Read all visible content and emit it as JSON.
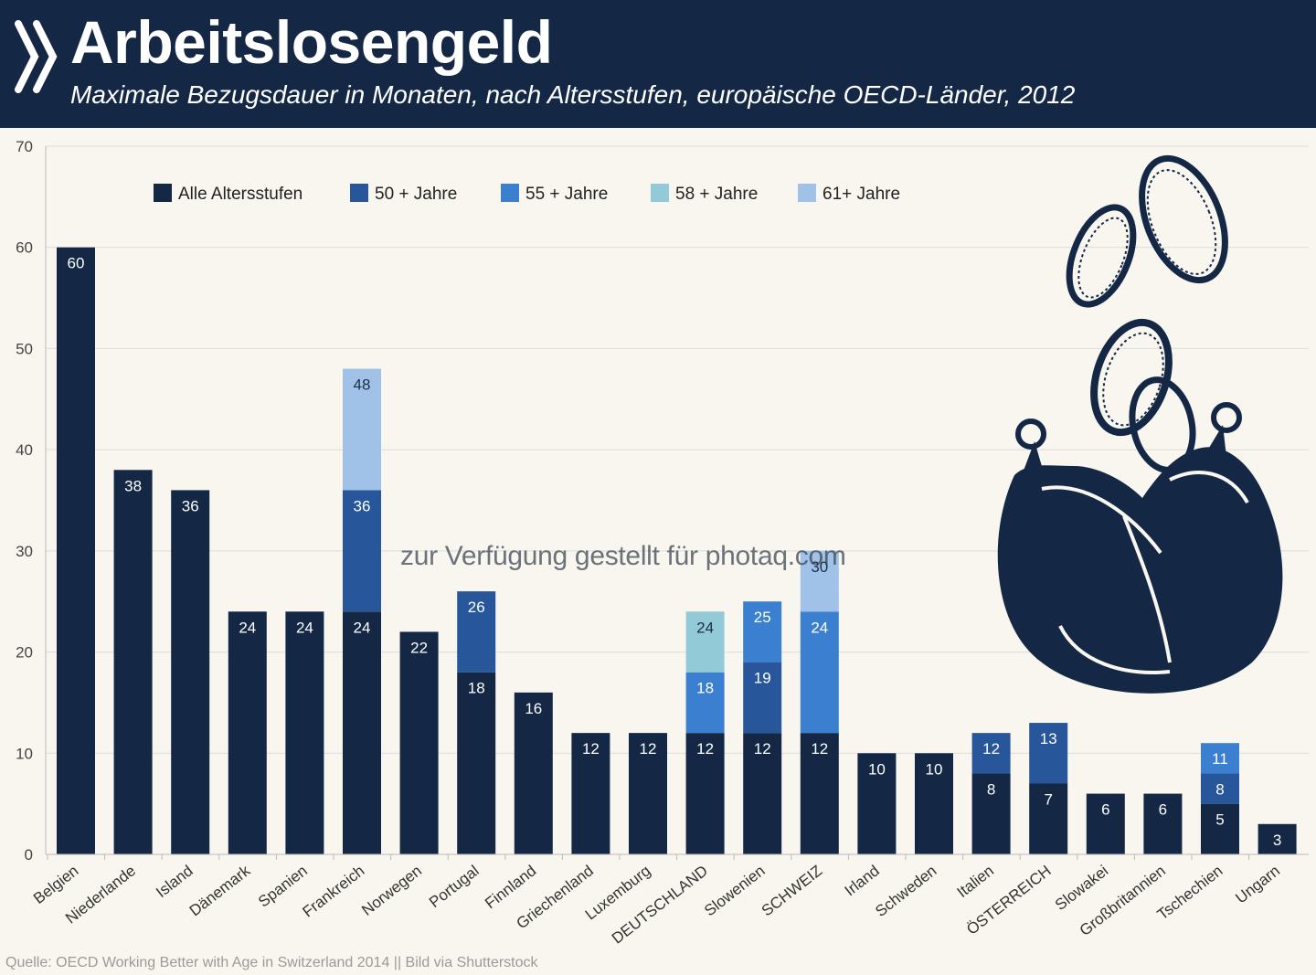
{
  "header": {
    "title": "Arbeitslosengeld",
    "subtitle": "Maximale Bezugsdauer in Monaten, nach Altersstufen, europäische OECD-Länder, 2012"
  },
  "footer": {
    "source": "Quelle: OECD Working Better with Age in Switzerland 2014 || Bild via Shutterstock"
  },
  "watermark": "zur Verfügung gestellt für photaq.com",
  "illustration": {
    "name": "coin-purse-with-coins",
    "color": "#142846"
  },
  "chart_data": {
    "type": "bar",
    "stacked": true,
    "title": "Arbeitslosengeld",
    "subtitle": "Maximale Bezugsdauer in Monaten, nach Altersstufen, europäische OECD-Länder, 2012",
    "ylim": [
      0,
      70
    ],
    "yticks": [
      0,
      10,
      20,
      30,
      40,
      50,
      60,
      70
    ],
    "grid": "horizontal",
    "legend_position": "top",
    "legend": [
      {
        "name": "Alle Altersstufen",
        "color": "#142846"
      },
      {
        "name": "50 + Jahre",
        "color": "#27579a"
      },
      {
        "name": "55 + Jahre",
        "color": "#3a7fd0"
      },
      {
        "name": "58 + Jahre",
        "color": "#92cad8"
      },
      {
        "name": "61+ Jahre",
        "color": "#a0c2e8"
      }
    ],
    "categories": [
      "Belgien",
      "Niederlande",
      "Island",
      "Dänemark",
      "Spanien",
      "Frankreich",
      "Norwegen",
      "Portugal",
      "Finnland",
      "Griechenland",
      "Luxemburg",
      "DEUTSCHLAND",
      "Slowenien",
      "SCHWEIZ",
      "Irland",
      "Schweden",
      "Italien",
      "ÖSTERREICH",
      "Slowakei",
      "Großbritannien",
      "Tschechien",
      "Ungarn"
    ],
    "bars": [
      {
        "segments": [
          {
            "series": 0,
            "value": 60,
            "label": "60"
          }
        ]
      },
      {
        "segments": [
          {
            "series": 0,
            "value": 38,
            "label": "38"
          }
        ]
      },
      {
        "segments": [
          {
            "series": 0,
            "value": 36,
            "label": "36"
          }
        ]
      },
      {
        "segments": [
          {
            "series": 0,
            "value": 24,
            "label": "24"
          }
        ]
      },
      {
        "segments": [
          {
            "series": 0,
            "value": 24,
            "label": "24"
          }
        ]
      },
      {
        "segments": [
          {
            "series": 0,
            "value": 24,
            "label": "24"
          },
          {
            "series": 1,
            "value": 36,
            "label": "36"
          },
          {
            "series": 4,
            "value": 48,
            "label": "48"
          }
        ]
      },
      {
        "segments": [
          {
            "series": 0,
            "value": 22,
            "label": "22"
          }
        ]
      },
      {
        "segments": [
          {
            "series": 0,
            "value": 18,
            "label": "18"
          },
          {
            "series": 1,
            "value": 26,
            "label": "26"
          }
        ]
      },
      {
        "segments": [
          {
            "series": 0,
            "value": 16,
            "label": "16"
          }
        ]
      },
      {
        "segments": [
          {
            "series": 0,
            "value": 12,
            "label": "12"
          }
        ]
      },
      {
        "segments": [
          {
            "series": 0,
            "value": 12,
            "label": "12"
          }
        ]
      },
      {
        "segments": [
          {
            "series": 0,
            "value": 12,
            "label": "12"
          },
          {
            "series": 2,
            "value": 18,
            "label": "18"
          },
          {
            "series": 3,
            "value": 24,
            "label": "24"
          }
        ]
      },
      {
        "segments": [
          {
            "series": 0,
            "value": 12,
            "label": "12"
          },
          {
            "series": 1,
            "value": 19,
            "label": "19"
          },
          {
            "series": 2,
            "value": 25,
            "label": "25"
          }
        ]
      },
      {
        "segments": [
          {
            "series": 0,
            "value": 12,
            "label": "12"
          },
          {
            "series": 2,
            "value": 24,
            "label": "24"
          },
          {
            "series": 4,
            "value": 30,
            "label": "30"
          }
        ]
      },
      {
        "segments": [
          {
            "series": 0,
            "value": 10,
            "label": "10"
          }
        ]
      },
      {
        "segments": [
          {
            "series": 0,
            "value": 10,
            "label": "10"
          }
        ]
      },
      {
        "segments": [
          {
            "series": 0,
            "value": 8,
            "label": "8"
          },
          {
            "series": 1,
            "value": 12,
            "label": "12"
          }
        ]
      },
      {
        "segments": [
          {
            "series": 0,
            "value": 7,
            "label": "7"
          },
          {
            "series": 1,
            "value": 13,
            "label": "13"
          }
        ]
      },
      {
        "segments": [
          {
            "series": 0,
            "value": 6,
            "label": "6"
          }
        ]
      },
      {
        "segments": [
          {
            "series": 0,
            "value": 6,
            "label": "6"
          }
        ]
      },
      {
        "segments": [
          {
            "series": 0,
            "value": 5,
            "label": "5"
          },
          {
            "series": 1,
            "value": 8,
            "label": "8"
          },
          {
            "series": 2,
            "value": 11,
            "label": "11"
          }
        ]
      },
      {
        "segments": [
          {
            "series": 0,
            "value": 3,
            "label": "3"
          }
        ]
      }
    ]
  }
}
